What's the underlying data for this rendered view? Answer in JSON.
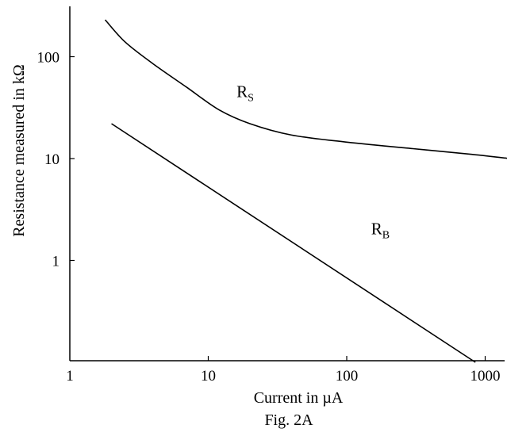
{
  "chart_data": {
    "type": "line",
    "title": "",
    "caption": "Fig. 2A",
    "xlabel": "Current in µA",
    "ylabel": "Resistance measured in kΩ",
    "xscale": "log",
    "yscale": "log",
    "xlim": [
      1,
      1500
    ],
    "ylim": [
      0.1,
      400
    ],
    "grid": false,
    "x_ticks": [
      {
        "value": 1,
        "label": "1"
      },
      {
        "value": 10,
        "label": "10"
      },
      {
        "value": 100,
        "label": "100"
      },
      {
        "value": 1000,
        "label": "1000"
      }
    ],
    "y_ticks": [
      {
        "value": 1,
        "label": "1"
      },
      {
        "value": 10,
        "label": "10"
      },
      {
        "value": 100,
        "label": "100"
      }
    ],
    "series": [
      {
        "name": "R_S",
        "label_main": "R",
        "label_sub": "S",
        "label_at": [
          16,
          40
        ],
        "points": [
          [
            1.8,
            230
          ],
          [
            2.5,
            140
          ],
          [
            4,
            85
          ],
          [
            7,
            50
          ],
          [
            12,
            30
          ],
          [
            20,
            22
          ],
          [
            40,
            17
          ],
          [
            100,
            14.5
          ],
          [
            300,
            12.5
          ],
          [
            800,
            11
          ],
          [
            1500,
            10
          ]
        ]
      },
      {
        "name": "R_B",
        "label_main": "R",
        "label_sub": "B",
        "label_at": [
          150,
          1.8
        ],
        "points": [
          [
            2,
            22
          ],
          [
            850,
            0.1
          ]
        ]
      }
    ]
  }
}
